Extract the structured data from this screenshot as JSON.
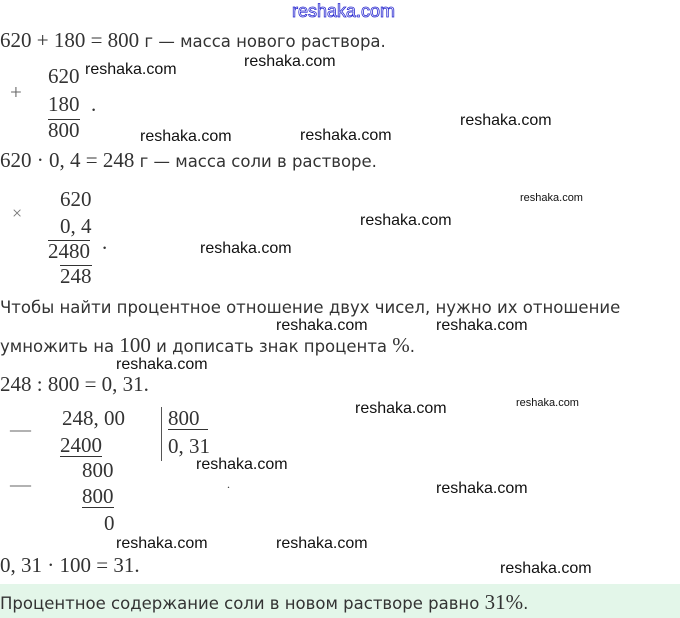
{
  "watermark": "reshaka.com",
  "line1": {
    "math": "620 + 180 = 800",
    "text": " г — масса нового раствора."
  },
  "addition": {
    "sign": "+",
    "a": "620",
    "b": "180",
    "sum": "800",
    "dot": "."
  },
  "line2": {
    "math": "620 · 0, 4 = 248",
    "text": " г — масса соли в растворе."
  },
  "multiplication": {
    "sign": "×",
    "a": "620",
    "b": "0, 4",
    "partial": "2480",
    "result": "248",
    "dot": "."
  },
  "paragraph": {
    "l1": "Чтобы найти процентное отношение двух чисел, нужно их отношение",
    "l2a": "умножить на ",
    "l2n": "100",
    "l2b": " и дописать знак процента ",
    "l2p": "%",
    "l2c": "."
  },
  "line3": "248 : 800 = 0, 31.",
  "division": {
    "minus": "—",
    "dividend": "248, 00",
    "sub1": "2400",
    "divisor": "800",
    "quotient": "0, 31",
    "rem1": "800",
    "sub2": "800",
    "rem2": "0",
    "dot": "."
  },
  "line4": "0, 31 · 100 = 31.",
  "answer": {
    "text": "Процентное содержание соли в новом растворе равно ",
    "value": "31%",
    "end": "."
  },
  "colors": {
    "answer_bg": "#e3f6e9",
    "watermark_top": "#2a2ad0"
  }
}
